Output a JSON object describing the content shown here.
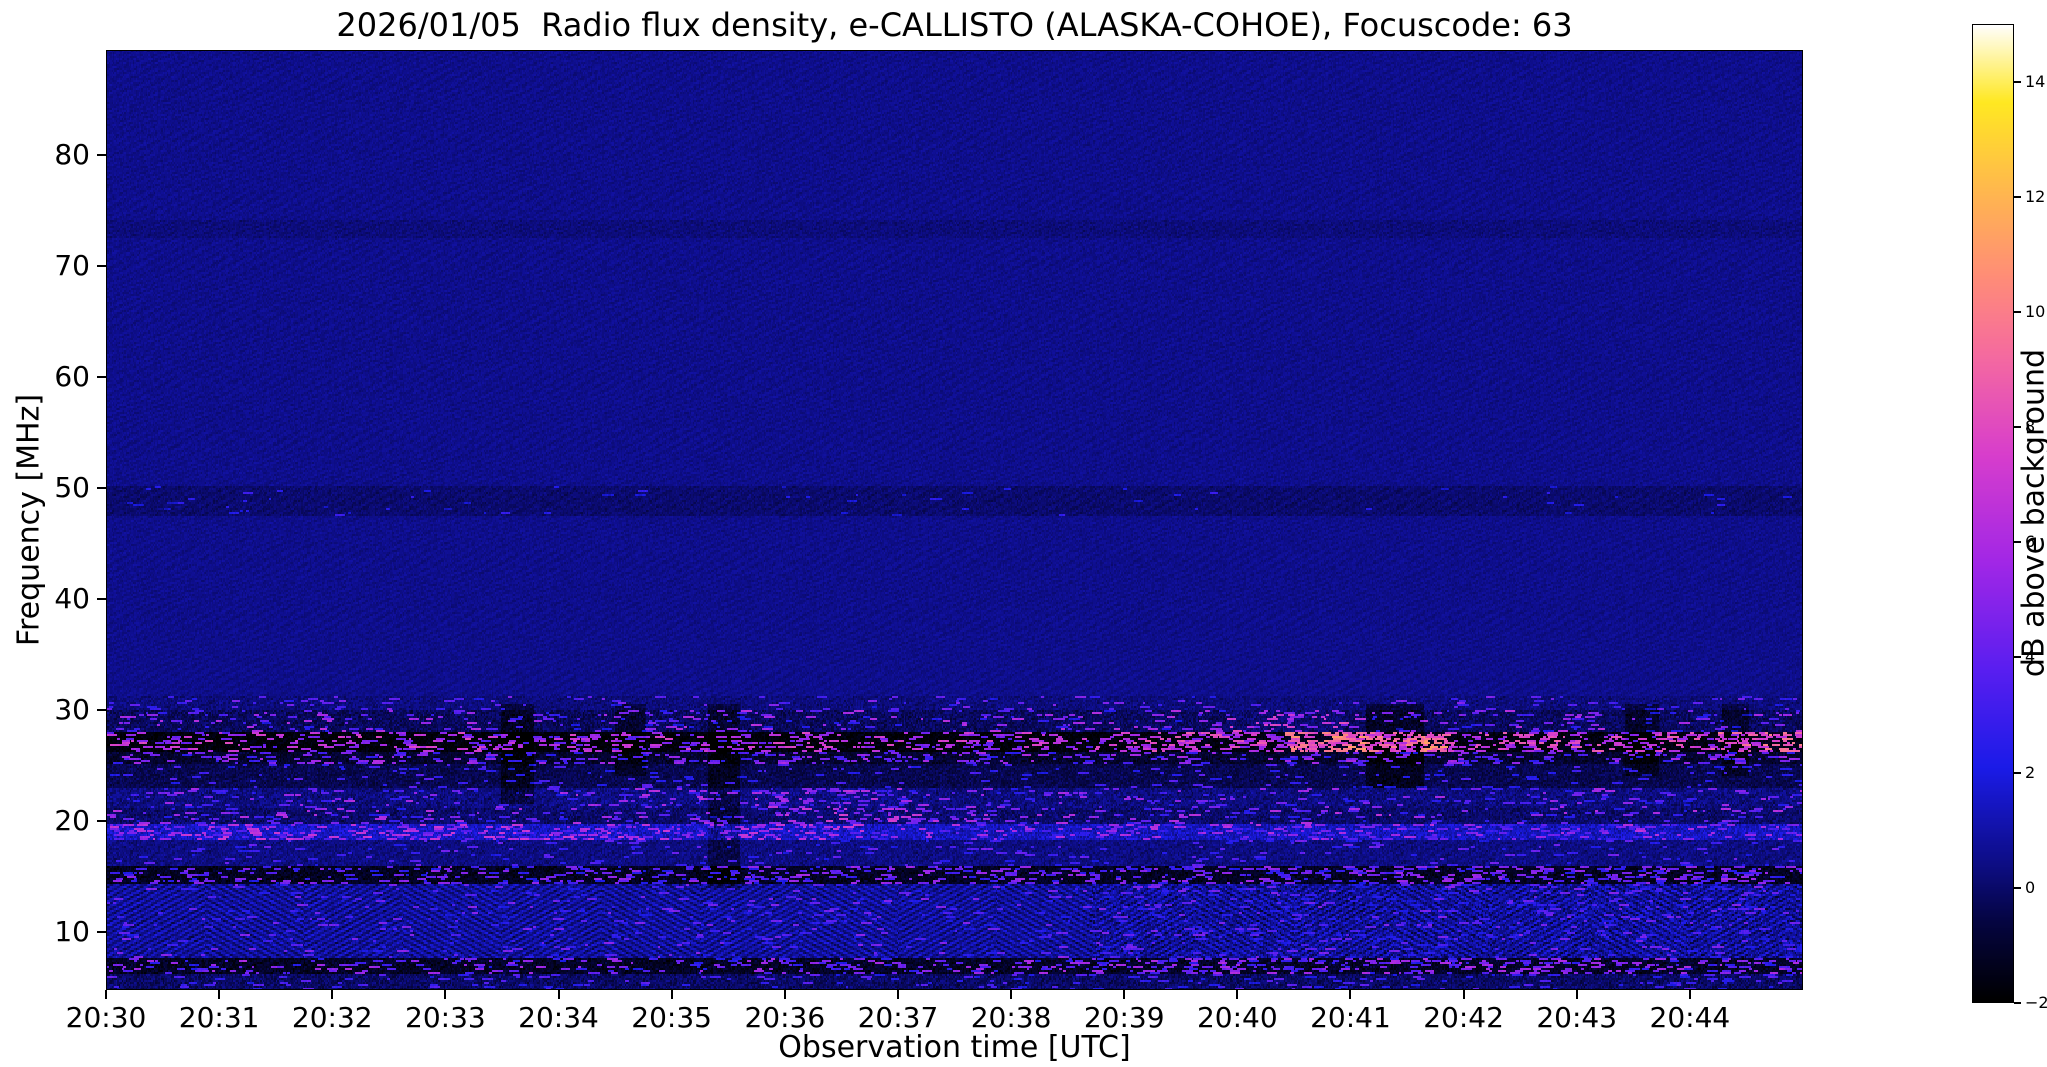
{
  "figure": {
    "background_color": "#ffffff",
    "text_color": "#000000"
  },
  "chart_data": {
    "type": "heatmap",
    "title": "2026/01/05  Radio flux density, e-CALLISTO (ALASKA-COHOE), Focuscode: 63",
    "xlabel": "Observation time [UTC]",
    "ylabel": "Frequency [MHz]",
    "x_ticks": [
      "20:30",
      "20:31",
      "20:32",
      "20:33",
      "20:34",
      "20:35",
      "20:36",
      "20:37",
      "20:38",
      "20:39",
      "20:40",
      "20:41",
      "20:42",
      "20:43",
      "20:44"
    ],
    "x_range_minutes": [
      0,
      15
    ],
    "y_ticks": [
      10,
      20,
      30,
      40,
      50,
      60,
      70,
      80
    ],
    "y_range": [
      4.8,
      89.5
    ],
    "grid": false,
    "colorbar": {
      "label": "dB above background",
      "tick_values": [
        -2,
        0,
        2,
        4,
        6,
        8,
        10,
        12,
        14
      ],
      "tick_labels": [
        "−2",
        "0",
        "2",
        "4",
        "6",
        "8",
        "10",
        "12",
        "14"
      ],
      "vmin": -2,
      "vmax": 15,
      "colormap_stops": [
        [
          0.0,
          "#000000"
        ],
        [
          0.08,
          "#050540"
        ],
        [
          0.14,
          "#0d0d84"
        ],
        [
          0.24,
          "#1b1be8"
        ],
        [
          0.34,
          "#5a1ef0"
        ],
        [
          0.45,
          "#a227e6"
        ],
        [
          0.56,
          "#d83ecc"
        ],
        [
          0.66,
          "#f56aa0"
        ],
        [
          0.74,
          "#ff8c78"
        ],
        [
          0.83,
          "#ffb84e"
        ],
        [
          0.92,
          "#ffe822"
        ],
        [
          1.0,
          "#ffffff"
        ]
      ]
    },
    "seed": 42,
    "background": {
      "base": 0.5,
      "noise": 0.3,
      "texture": 0.16
    },
    "bands": [
      {
        "name": "band-73mhz-faint-dark",
        "f": [
          72.5,
          74.2
        ],
        "add": -0.25,
        "noise": 0.15,
        "prob": 0,
        "burst": [
          0,
          0
        ]
      },
      {
        "name": "band-49mhz-faint-dark",
        "f": [
          47.6,
          50.2
        ],
        "add": -0.45,
        "noise": 0.2,
        "prob": 0.004,
        "burst": [
          1.5,
          3
        ]
      },
      {
        "name": "band-30mhz",
        "f": [
          30.0,
          31.3
        ],
        "add": -0.25,
        "noise": 0.4,
        "prob": 0.015,
        "burst": [
          2,
          5
        ]
      },
      {
        "name": "band-28-30mhz-speckle",
        "f": [
          28.0,
          30.0
        ],
        "add": -0.7,
        "noise": 0.55,
        "prob": 0.03,
        "burst": [
          2,
          6.5
        ],
        "boosts": [
          {
            "x": [
              0.66,
              0.73
            ],
            "prob_mult": 2.2,
            "val_add": 1.8
          }
        ]
      },
      {
        "name": "band-27mhz-rfi-dark-with-bright-bursts",
        "f": [
          26.3,
          28.0
        ],
        "add": -2.3,
        "noise": 0.3,
        "prob": 0.07,
        "burst": [
          3.5,
          8
        ],
        "boosts": [
          {
            "x": [
              0.6,
              1.0
            ],
            "prob_mult": 1.6,
            "val_add": 0.8
          },
          {
            "x": [
              0.695,
              0.79
            ],
            "prob_mult": 2.2,
            "val_add": 2.5
          },
          {
            "x": [
              0.95,
              1.0
            ],
            "prob_mult": 1.8,
            "val_add": 1.5
          }
        ]
      },
      {
        "name": "band-25-26mhz-speckle",
        "f": [
          25.1,
          26.3
        ],
        "add": -1.5,
        "noise": 0.5,
        "prob": 0.05,
        "burst": [
          2.5,
          6
        ]
      },
      {
        "name": "band-23-25mhz",
        "f": [
          23.0,
          25.1
        ],
        "add": -0.9,
        "noise": 0.45,
        "prob": 0.012,
        "burst": [
          2,
          4
        ]
      },
      {
        "name": "band-22mhz-speckle",
        "f": [
          21.2,
          23.0
        ],
        "add": -0.2,
        "noise": 0.6,
        "prob": 0.025,
        "burst": [
          2,
          6
        ],
        "boosts": [
          {
            "x": [
              0.27,
              0.47
            ],
            "prob_mult": 2.0,
            "val_add": 0.5
          }
        ]
      },
      {
        "name": "band-20mhz",
        "f": [
          19.7,
          21.2
        ],
        "add": -0.5,
        "noise": 0.55,
        "prob": 0.03,
        "burst": [
          2,
          6.5
        ],
        "boosts": [
          {
            "x": [
              0.4,
              0.52
            ],
            "prob_mult": 2.5,
            "val_add": 1.0
          }
        ]
      },
      {
        "name": "band-19mhz-bright-line",
        "f": [
          18.4,
          19.7
        ],
        "add": 0.9,
        "noise": 0.8,
        "prob": 0.05,
        "burst": [
          2.5,
          6.5
        ],
        "boosts": [
          {
            "x": [
              0.0,
              0.45
            ],
            "prob_mult": 1.5,
            "val_add": 0.8
          }
        ]
      },
      {
        "name": "band-16-18mhz",
        "f": [
          15.9,
          18.4
        ],
        "add": -0.15,
        "noise": 0.45,
        "prob": 0.012,
        "burst": [
          2,
          4.5
        ]
      },
      {
        "name": "band-15mhz-dark",
        "f": [
          14.3,
          15.9
        ],
        "add": -1.8,
        "noise": 0.5,
        "prob": 0.05,
        "burst": [
          2,
          5.5
        ],
        "boosts": [
          {
            "x": [
              0.35,
              1.0
            ],
            "prob_mult": 1.5,
            "val_add": 0.3
          }
        ]
      },
      {
        "name": "band-8-14mhz-herringbone",
        "f": [
          7.6,
          14.3
        ],
        "add": 0.25,
        "noise": 0.45,
        "stripe": 0.85,
        "prob": 0.012,
        "burst": [
          2,
          5
        ],
        "boosts": [
          {
            "x": [
              0.58,
              1.0
            ],
            "noise_mult": 1.9,
            "val_add": -0.15,
            "prob_mult": 2.0
          }
        ]
      },
      {
        "name": "band-7mhz-dark",
        "f": [
          6.3,
          7.6
        ],
        "add": -1.7,
        "noise": 0.55,
        "prob": 0.045,
        "burst": [
          2,
          6
        ],
        "boosts": [
          {
            "x": [
              0.55,
              1.0
            ],
            "prob_mult": 1.7,
            "val_add": 0.3
          }
        ]
      },
      {
        "name": "band-5-6mhz",
        "f": [
          4.8,
          6.3
        ],
        "add": -0.6,
        "noise": 0.6,
        "prob": 0.02,
        "burst": [
          2,
          4
        ]
      }
    ],
    "dark_columns": [
      {
        "x": [
          0.232,
          0.252
        ],
        "f": [
          21.5,
          30.5
        ],
        "dv": -1.0
      },
      {
        "x": [
          0.3,
          0.318
        ],
        "f": [
          24,
          30.5
        ],
        "dv": -0.8
      },
      {
        "x": [
          0.355,
          0.373
        ],
        "f": [
          14,
          30.5
        ],
        "dv": -0.9
      },
      {
        "x": [
          0.742,
          0.776
        ],
        "f": [
          23,
          30.5
        ],
        "dv": -1.0
      },
      {
        "x": [
          0.895,
          0.915
        ],
        "f": [
          24,
          30.5
        ],
        "dv": -0.9
      },
      {
        "x": [
          0.952,
          0.968
        ],
        "f": [
          24,
          30.5
        ],
        "dv": -0.8
      }
    ]
  }
}
